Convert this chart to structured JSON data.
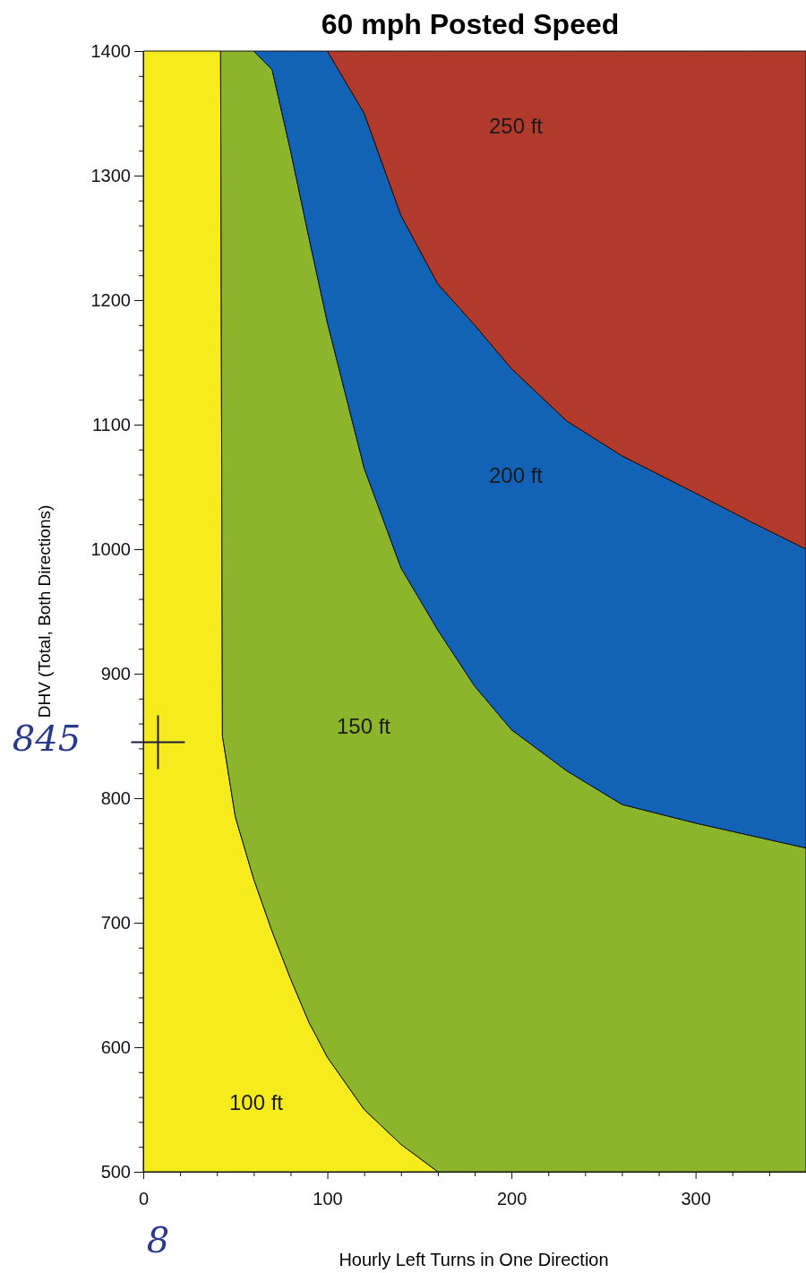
{
  "chart_data": {
    "type": "area",
    "title": "60 mph Posted Speed",
    "xlabel": "Hourly Left Turns in One Direction",
    "ylabel": "DHV (Total, Both Directions)",
    "xlim": [
      0,
      360
    ],
    "ylim": [
      500,
      1400
    ],
    "xticks": [
      0,
      {
        "value": 20,
        "label": null
      },
      {
        "value": 40,
        "label": null
      },
      {
        "value": 60,
        "label": null
      },
      {
        "value": 80,
        "label": null
      },
      100,
      {
        "value": 120,
        "label": null
      },
      {
        "value": 140,
        "label": null
      },
      {
        "value": 160,
        "label": null
      },
      {
        "value": 180,
        "label": null
      },
      200,
      {
        "value": 220,
        "label": null
      },
      {
        "value": 240,
        "label": null
      },
      {
        "value": 260,
        "label": null
      },
      {
        "value": 280,
        "label": null
      },
      300,
      {
        "value": 320,
        "label": null
      },
      {
        "value": 340,
        "label": null
      }
    ],
    "yticks": [
      500,
      {
        "value": 520,
        "label": null
      },
      {
        "value": 540,
        "label": null
      },
      {
        "value": 560,
        "label": null
      },
      {
        "value": 580,
        "label": null
      },
      600,
      {
        "value": 620,
        "label": null
      },
      {
        "value": 640,
        "label": null
      },
      {
        "value": 660,
        "label": null
      },
      {
        "value": 680,
        "label": null
      },
      700,
      {
        "value": 720,
        "label": null
      },
      {
        "value": 740,
        "label": null
      },
      {
        "value": 760,
        "label": null
      },
      {
        "value": 780,
        "label": null
      },
      800,
      {
        "value": 820,
        "label": null
      },
      {
        "value": 840,
        "label": null
      },
      {
        "value": 860,
        "label": null
      },
      {
        "value": 880,
        "label": null
      },
      900,
      {
        "value": 920,
        "label": null
      },
      {
        "value": 940,
        "label": null
      },
      {
        "value": 960,
        "label": null
      },
      {
        "value": 980,
        "label": null
      },
      1000,
      {
        "value": 1020,
        "label": null
      },
      {
        "value": 1040,
        "label": null
      },
      {
        "value": 1060,
        "label": null
      },
      {
        "value": 1080,
        "label": null
      },
      1100,
      {
        "value": 1120,
        "label": null
      },
      {
        "value": 1140,
        "label": null
      },
      {
        "value": 1160,
        "label": null
      },
      {
        "value": 1180,
        "label": null
      },
      1200,
      {
        "value": 1220,
        "label": null
      },
      {
        "value": 1240,
        "label": null
      },
      {
        "value": 1260,
        "label": null
      },
      {
        "value": 1280,
        "label": null
      },
      1300,
      {
        "value": 1320,
        "label": null
      },
      {
        "value": 1340,
        "label": null
      },
      {
        "value": 1360,
        "label": null
      },
      {
        "value": 1380,
        "label": null
      },
      1400
    ],
    "grid": false,
    "x": [
      0,
      42,
      43,
      50,
      60,
      70,
      80,
      90,
      100,
      120,
      140,
      160,
      180,
      200,
      230,
      260,
      300,
      330,
      360
    ],
    "series": [
      {
        "name": "100 ft",
        "color": "#f6eb1c",
        "values": [
          1400,
          1400,
          850,
          785,
          735,
          693,
          655,
          620,
          592,
          550,
          522,
          500,
          null,
          null,
          null,
          null,
          null,
          null,
          null
        ]
      },
      {
        "name": "150 ft",
        "color": "#8cb52c",
        "values": [
          null,
          1400,
          1400,
          1400,
          1400,
          1385,
          1320,
          1250,
          1182,
          1065,
          985,
          935,
          890,
          855,
          822,
          795,
          780,
          770,
          760
        ]
      },
      {
        "name": "200 ft",
        "color": "#1262b6",
        "values": [
          null,
          null,
          null,
          null,
          1400,
          1400,
          1400,
          1400,
          1400,
          1350,
          1268,
          1213,
          1180,
          1145,
          1103,
          1075,
          1045,
          1022,
          1000
        ]
      },
      {
        "name": "250 ft",
        "color": "#b23a2c",
        "values": [
          null,
          null,
          null,
          null,
          null,
          null,
          null,
          null,
          1400,
          1400,
          1400,
          1400,
          1400,
          1400,
          1400,
          1400,
          1400,
          1400,
          1400
        ]
      },
      {
        "type": "scatter",
        "marker": "cross",
        "color": "#1c1c40",
        "x": [
          8
        ],
        "values": [
          845
        ]
      }
    ],
    "annotations": [
      {
        "text": "845",
        "x": 0,
        "y": 845
      },
      {
        "text": "8",
        "x": 8,
        "y": 500
      }
    ]
  }
}
